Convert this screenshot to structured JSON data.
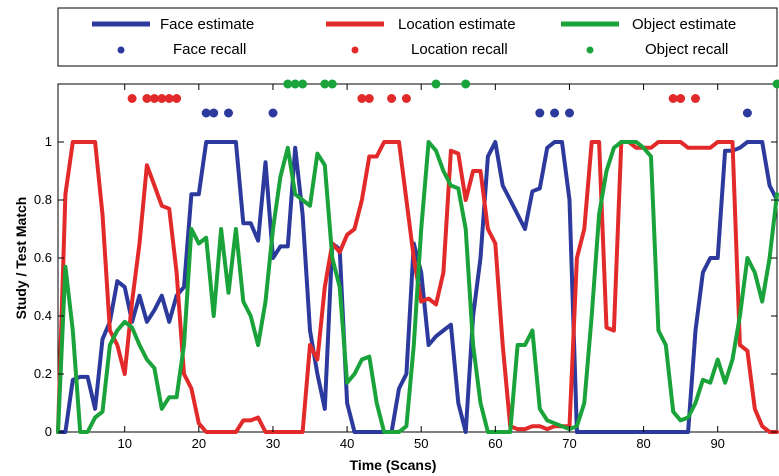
{
  "chart_data": {
    "type": "line",
    "xlabel": "Time (Scans)",
    "ylabel": "Study / Test Match",
    "xlim": [
      1,
      98
    ],
    "ylim": [
      0,
      1.2
    ],
    "xticks": [
      10,
      20,
      30,
      40,
      50,
      60,
      70,
      80,
      90
    ],
    "yticks": [
      0,
      0.2,
      0.4,
      0.6,
      0.8,
      1
    ],
    "ytick_labels": [
      "0",
      "0.2",
      "0.4",
      "0.6",
      "0.8",
      "1"
    ],
    "legend_position": "top",
    "grid": false,
    "series": [
      {
        "name": "Face estimate",
        "color": "#2b3a9c",
        "x": [
          1,
          2,
          3,
          4,
          5,
          6,
          7,
          8,
          9,
          10,
          11,
          12,
          13,
          14,
          15,
          16,
          17,
          18,
          19,
          20,
          21,
          22,
          23,
          24,
          25,
          26,
          27,
          28,
          29,
          30,
          31,
          32,
          33,
          34,
          35,
          36,
          37,
          38,
          39,
          40,
          41,
          42,
          43,
          44,
          45,
          46,
          47,
          48,
          49,
          50,
          51,
          52,
          53,
          54,
          55,
          56,
          57,
          58,
          59,
          60,
          61,
          62,
          63,
          64,
          65,
          66,
          67,
          68,
          69,
          70,
          71,
          72,
          73,
          74,
          75,
          76,
          77,
          78,
          79,
          80,
          81,
          82,
          83,
          84,
          85,
          86,
          87,
          88,
          89,
          90,
          91,
          92,
          93,
          94,
          95,
          96,
          97,
          98
        ],
        "y": [
          0,
          0,
          0.18,
          0.19,
          0.19,
          0.08,
          0.32,
          0.38,
          0.52,
          0.5,
          0.38,
          0.47,
          0.38,
          0.42,
          0.47,
          0.38,
          0.47,
          0.5,
          0.82,
          0.82,
          1.0,
          1.0,
          1.0,
          1.0,
          1.0,
          0.72,
          0.72,
          0.66,
          0.93,
          0.6,
          0.64,
          0.64,
          0.98,
          0.75,
          0.35,
          0.2,
          0.08,
          0.65,
          0.63,
          0.1,
          0.0,
          0.0,
          0.0,
          0.0,
          0.0,
          0.0,
          0.15,
          0.2,
          0.65,
          0.55,
          0.3,
          0.33,
          0.35,
          0.37,
          0.1,
          0.0,
          0.4,
          0.6,
          0.95,
          1.0,
          0.85,
          0.8,
          0.75,
          0.7,
          0.83,
          0.84,
          0.98,
          1.0,
          1.0,
          0.8,
          0.0,
          0.0,
          0.0,
          0.0,
          0.0,
          0.0,
          0.0,
          0.0,
          0.0,
          0.0,
          0.0,
          0.0,
          0.0,
          0.0,
          0.0,
          0.0,
          0.35,
          0.55,
          0.6,
          0.6,
          0.97,
          0.97,
          0.98,
          1.0,
          1.0,
          1.0,
          0.85,
          0.8
        ]
      },
      {
        "name": "Location estimate",
        "color": "#e32a2a",
        "x": [
          1,
          2,
          3,
          4,
          5,
          6,
          7,
          8,
          9,
          10,
          11,
          12,
          13,
          14,
          15,
          16,
          17,
          18,
          19,
          20,
          21,
          22,
          23,
          24,
          25,
          26,
          27,
          28,
          29,
          30,
          31,
          32,
          33,
          34,
          35,
          36,
          37,
          38,
          39,
          40,
          41,
          42,
          43,
          44,
          45,
          46,
          47,
          48,
          49,
          50,
          51,
          52,
          53,
          54,
          55,
          56,
          57,
          58,
          59,
          60,
          61,
          62,
          63,
          64,
          65,
          66,
          67,
          68,
          69,
          70,
          71,
          72,
          73,
          74,
          75,
          76,
          77,
          78,
          79,
          80,
          81,
          82,
          83,
          84,
          85,
          86,
          87,
          88,
          89,
          90,
          91,
          92,
          93,
          94,
          95,
          96,
          97,
          98
        ],
        "y": [
          0.0,
          0.82,
          1.0,
          1.0,
          1.0,
          1.0,
          0.75,
          0.35,
          0.3,
          0.2,
          0.45,
          0.65,
          0.92,
          0.85,
          0.78,
          0.77,
          0.55,
          0.2,
          0.15,
          0.03,
          0.0,
          0.0,
          0.0,
          0.0,
          0.0,
          0.04,
          0.04,
          0.05,
          0.0,
          0.0,
          0.0,
          0.0,
          0.0,
          0.0,
          0.3,
          0.25,
          0.5,
          0.65,
          0.62,
          0.68,
          0.7,
          0.8,
          0.95,
          0.95,
          1.0,
          1.0,
          1.0,
          0.8,
          0.6,
          0.45,
          0.46,
          0.44,
          0.55,
          0.97,
          0.96,
          0.8,
          0.9,
          0.9,
          0.7,
          0.65,
          0.3,
          0.02,
          0.01,
          0.01,
          0.02,
          0.02,
          0.01,
          0.02,
          0.02,
          0.02,
          0.6,
          0.7,
          1.0,
          1.0,
          0.36,
          0.35,
          1.0,
          1.0,
          0.98,
          0.98,
          0.98,
          1.0,
          1.0,
          1.0,
          1.0,
          0.98,
          0.98,
          0.98,
          0.98,
          1.0,
          1.0,
          1.0,
          0.3,
          0.28,
          0.08,
          0.02,
          0.0,
          0.0
        ]
      },
      {
        "name": "Object estimate",
        "color": "#1aa33a",
        "x": [
          1,
          2,
          3,
          4,
          5,
          6,
          7,
          8,
          9,
          10,
          11,
          12,
          13,
          14,
          15,
          16,
          17,
          18,
          19,
          20,
          21,
          22,
          23,
          24,
          25,
          26,
          27,
          28,
          29,
          30,
          31,
          32,
          33,
          34,
          35,
          36,
          37,
          38,
          39,
          40,
          41,
          42,
          43,
          44,
          45,
          46,
          47,
          48,
          49,
          50,
          51,
          52,
          53,
          54,
          55,
          56,
          57,
          58,
          59,
          60,
          61,
          62,
          63,
          64,
          65,
          66,
          67,
          68,
          69,
          70,
          71,
          72,
          73,
          74,
          75,
          76,
          77,
          78,
          79,
          80,
          81,
          82,
          83,
          84,
          85,
          86,
          87,
          88,
          89,
          90,
          91,
          92,
          93,
          94,
          95,
          96,
          97,
          98
        ],
        "y": [
          0.0,
          0.57,
          0.35,
          0.0,
          0.0,
          0.05,
          0.07,
          0.3,
          0.35,
          0.38,
          0.36,
          0.3,
          0.25,
          0.22,
          0.08,
          0.12,
          0.12,
          0.3,
          0.7,
          0.65,
          0.67,
          0.4,
          0.7,
          0.48,
          0.7,
          0.45,
          0.4,
          0.3,
          0.45,
          0.7,
          0.88,
          0.98,
          0.82,
          0.8,
          0.78,
          0.96,
          0.92,
          0.6,
          0.5,
          0.17,
          0.2,
          0.25,
          0.26,
          0.1,
          0.0,
          0.0,
          0.0,
          0.02,
          0.3,
          0.7,
          1.0,
          0.97,
          0.9,
          0.85,
          0.84,
          0.7,
          0.3,
          0.1,
          0.0,
          0.0,
          0.0,
          0.0,
          0.3,
          0.3,
          0.35,
          0.08,
          0.04,
          0.03,
          0.02,
          0.01,
          0.02,
          0.1,
          0.4,
          0.75,
          0.9,
          0.98,
          1.0,
          1.0,
          1.0,
          0.98,
          0.95,
          0.35,
          0.3,
          0.07,
          0.04,
          0.05,
          0.1,
          0.18,
          0.17,
          0.25,
          0.17,
          0.25,
          0.4,
          0.6,
          0.55,
          0.45,
          0.6,
          0.82
        ]
      },
      {
        "name": "Face recall",
        "type": "scatter",
        "color": "#2b3a9c",
        "x": [
          21,
          22,
          24,
          30,
          66,
          68,
          70,
          94
        ],
        "y": [
          1.1,
          1.1,
          1.1,
          1.1,
          1.1,
          1.1,
          1.1,
          1.1
        ]
      },
      {
        "name": "Location recall",
        "type": "scatter",
        "color": "#e32a2a",
        "x": [
          11,
          13,
          14,
          15,
          16,
          17,
          42,
          43,
          46,
          48,
          84,
          85,
          87
        ],
        "y": [
          1.15,
          1.15,
          1.15,
          1.15,
          1.15,
          1.15,
          1.15,
          1.15,
          1.15,
          1.15,
          1.15,
          1.15,
          1.15
        ]
      },
      {
        "name": "Object recall",
        "type": "scatter",
        "color": "#1aa33a",
        "x": [
          32,
          33,
          34,
          37,
          38,
          52,
          56,
          98
        ],
        "y": [
          1.2,
          1.2,
          1.2,
          1.2,
          1.2,
          1.2,
          1.2,
          1.2
        ]
      }
    ],
    "legend": [
      {
        "label": "Face  estimate",
        "series": 0,
        "kind": "line"
      },
      {
        "label": "Location  estimate",
        "series": 1,
        "kind": "line"
      },
      {
        "label": "Object  estimate",
        "series": 2,
        "kind": "line"
      },
      {
        "label": "Face  recall",
        "series": 3,
        "kind": "dot"
      },
      {
        "label": "Location  recall",
        "series": 4,
        "kind": "dot"
      },
      {
        "label": "Object  recall",
        "series": 5,
        "kind": "dot"
      }
    ]
  }
}
